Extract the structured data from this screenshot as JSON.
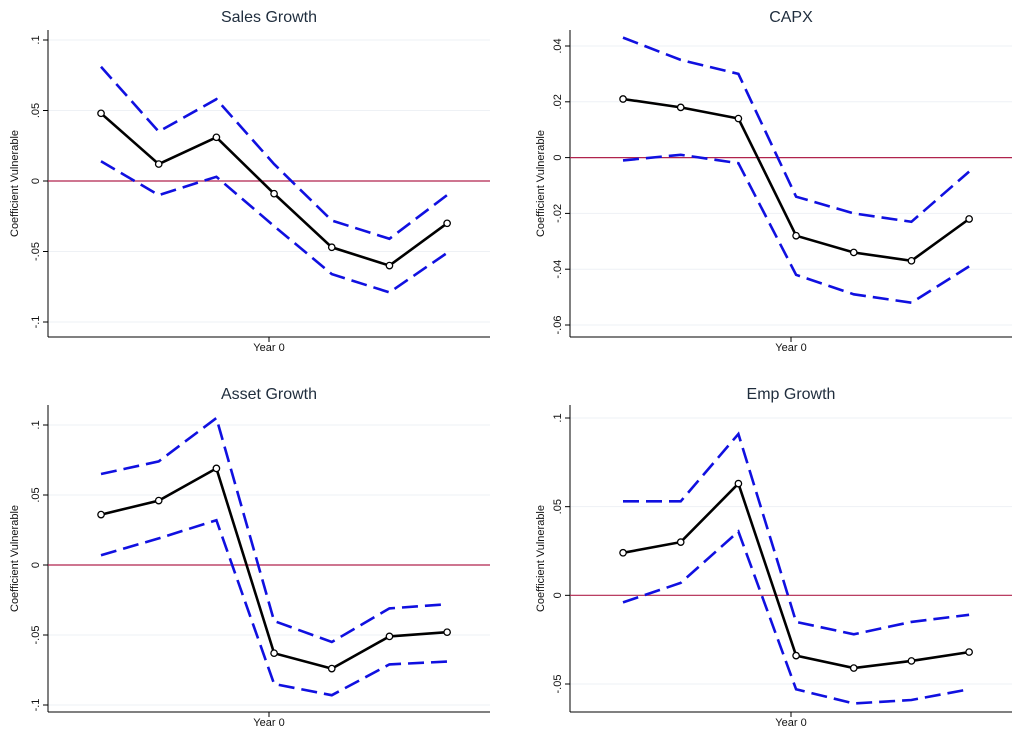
{
  "chart_data": [
    {
      "type": "line",
      "title": "Sales Growth",
      "xlabel": "Year 0",
      "ylabel": "Coefficient Vulnerable",
      "ylim": [
        -0.1,
        0.1
      ],
      "yticks": [
        -0.1,
        -0.05,
        0,
        0.05,
        0.1
      ],
      "ytick_labels": [
        "-.1",
        "-.05",
        "0",
        ".05",
        ".1"
      ],
      "reference_line_y": 0,
      "grid": true,
      "series": [
        {
          "values": [
            0.048,
            0.012,
            0.031,
            -0.009,
            -0.047,
            -0.06,
            -0.03
          ]
        },
        {
          "values": [
            0.081,
            0.035,
            0.058,
            0.012,
            -0.028,
            -0.041,
            -0.01
          ]
        },
        {
          "values": [
            0.014,
            -0.01,
            0.003,
            -0.032,
            -0.066,
            -0.079,
            -0.051
          ]
        }
      ]
    },
    {
      "type": "line",
      "title": "CAPX",
      "xlabel": "Year 0",
      "ylabel": "Coefficient Vulnerable",
      "ylim": [
        -0.06,
        0.04
      ],
      "yticks": [
        -0.06,
        -0.04,
        -0.02,
        0,
        0.02,
        0.04
      ],
      "ytick_labels": [
        "-.06",
        "-.04",
        "-.02",
        "0",
        ".02",
        ".04"
      ],
      "reference_line_y": 0,
      "grid": true,
      "series": [
        {
          "values": [
            0.021,
            0.018,
            0.014,
            -0.028,
            -0.034,
            -0.037,
            -0.022
          ]
        },
        {
          "values": [
            0.043,
            0.035,
            0.03,
            -0.014,
            -0.02,
            -0.023,
            -0.005
          ]
        },
        {
          "values": [
            -0.001,
            0.001,
            -0.002,
            -0.042,
            -0.049,
            -0.052,
            -0.039
          ]
        }
      ]
    },
    {
      "type": "line",
      "title": "Asset Growth",
      "xlabel": "Year 0",
      "ylabel": "Coefficient Vulnerable",
      "ylim": [
        -0.1,
        0.1
      ],
      "yticks": [
        -0.1,
        -0.05,
        0,
        0.05,
        0.1
      ],
      "ytick_labels": [
        "-.1",
        "-.05",
        "0",
        ".05",
        ".1"
      ],
      "reference_line_y": 0,
      "grid": true,
      "series": [
        {
          "values": [
            0.036,
            0.046,
            0.069,
            -0.063,
            -0.074,
            -0.051,
            -0.048
          ]
        },
        {
          "values": [
            0.065,
            0.074,
            0.105,
            -0.04,
            -0.055,
            -0.031,
            -0.028
          ]
        },
        {
          "values": [
            0.007,
            0.019,
            0.032,
            -0.085,
            -0.093,
            -0.071,
            -0.069
          ]
        }
      ]
    },
    {
      "type": "line",
      "title": "Emp Growth",
      "xlabel": "Year 0",
      "ylabel": "Coefficient Vulnerable",
      "ylim": [
        -0.05,
        0.1
      ],
      "yticks": [
        -0.05,
        0,
        0.05,
        0.1
      ],
      "ytick_labels": [
        "-.05",
        "0",
        ".05",
        ".1"
      ],
      "reference_line_y": 0,
      "grid": true,
      "series": [
        {
          "values": [
            0.024,
            0.03,
            0.063,
            -0.034,
            -0.041,
            -0.037,
            -0.032
          ]
        },
        {
          "values": [
            0.053,
            0.053,
            0.091,
            -0.015,
            -0.022,
            -0.015,
            -0.011
          ]
        },
        {
          "values": [
            -0.004,
            0.007,
            0.036,
            -0.053,
            -0.061,
            -0.059,
            -0.053
          ]
        }
      ]
    }
  ]
}
